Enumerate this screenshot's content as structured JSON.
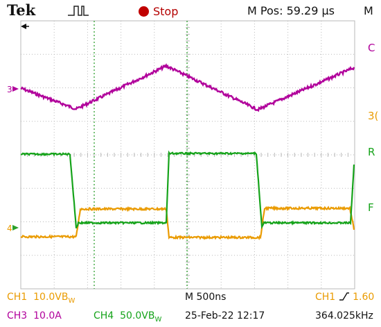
{
  "header": {
    "brand": "Tek",
    "state_label": "Stop",
    "mpos_label": "M Pos:",
    "mpos_value": "59.29 μs",
    "edge_letter": "M"
  },
  "colors": {
    "ch1": "#b1009b",
    "ch3": "#ea9b00",
    "ch4": "#15a31a",
    "grid": "#b9b9b9",
    "cursor": "#30a030",
    "stop": "#c00000"
  },
  "markers": {
    "ch1": "3",
    "ch3": "4"
  },
  "right_edge": {
    "ch1_label": "C",
    "ch3_label": "3(",
    "ch4_label_r": "R",
    "ch4_label_f": "F"
  },
  "status": {
    "ch1": "CH1",
    "ch1_scale": "10.0V",
    "ch1_bw": "B",
    "ch1_bw_sub": "W",
    "ch3": "CH3",
    "ch3_scale": "10.0A",
    "ch4": "CH4",
    "ch4_scale": "50.0V",
    "ch4_bw": "B",
    "ch4_bw_sub": "W",
    "timebase": "M 500ns",
    "date": "25-Feb-22 12:17",
    "trig_src": "CH1",
    "trig_level": "1.60",
    "freq": "364.025kHz"
  }
}
